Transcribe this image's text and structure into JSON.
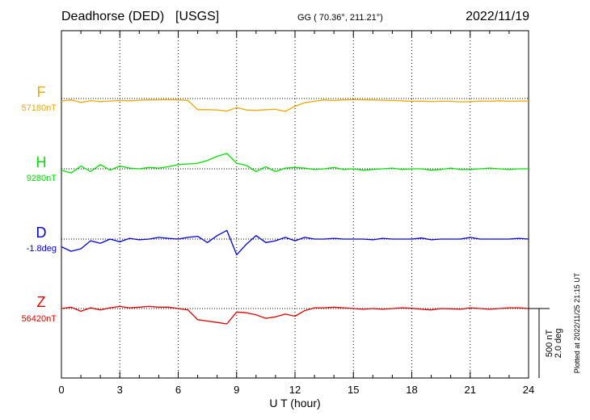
{
  "header": {
    "station": "Deadhorse (DED)",
    "source": "[USGS]",
    "coords": "GG ( 70.36°, 211.21°)",
    "date": "2022/11/19"
  },
  "footer": {
    "plotted": "Plotted at 2022/11/25 21:15 UT"
  },
  "colors": {
    "F": "#f0a800",
    "H": "#00e000",
    "D": "#0000dd",
    "Z": "#dd0000",
    "frame": "#000000"
  },
  "chart_data": {
    "type": "line",
    "title": "Deadhorse (DED)  [USGS]",
    "xlabel": "U T (hour)",
    "xlim": [
      0,
      24
    ],
    "xticks": [
      "0",
      "3",
      "6",
      "9",
      "12",
      "15",
      "18",
      "21",
      "24"
    ],
    "grid": "vertical dotted every 3 h",
    "scale": {
      "nT": "500 nT",
      "deg": "2.0 deg"
    },
    "series": [
      {
        "name": "F",
        "baseline": "57180nT",
        "x": [
          0,
          0.5,
          1,
          1.5,
          2,
          2.5,
          3,
          3.5,
          4,
          4.5,
          5,
          5.5,
          6,
          6.5,
          7,
          7.5,
          8,
          8.5,
          9,
          9.5,
          10,
          10.5,
          11,
          11.5,
          12,
          12.5,
          13,
          13.5,
          14,
          14.5,
          15,
          15.5,
          16,
          16.5,
          17,
          17.5,
          18,
          18.5,
          19,
          19.5,
          20,
          20.5,
          21,
          21.5,
          22,
          22.5,
          23,
          23.5,
          24
        ],
        "values": [
          18,
          10,
          28,
          15,
          22,
          18,
          14,
          16,
          12,
          10,
          9,
          8,
          10,
          14,
          80,
          80,
          82,
          90,
          65,
          82,
          85,
          80,
          78,
          92,
          55,
          30,
          20,
          10,
          14,
          10,
          8,
          9,
          10,
          12,
          14,
          16,
          20,
          19,
          21,
          20,
          20,
          24,
          22,
          18,
          20,
          16,
          20,
          18,
          18
        ]
      },
      {
        "name": "H",
        "baseline": "9280nT",
        "x": [
          0,
          0.5,
          1,
          1.5,
          2,
          2.5,
          3,
          3.5,
          4,
          4.5,
          5,
          5.5,
          6,
          6.5,
          7,
          7.5,
          8,
          8.5,
          9,
          9.5,
          10,
          10.5,
          11,
          11.5,
          12,
          12.5,
          13,
          13.5,
          14,
          14.5,
          15,
          15.5,
          16,
          16.5,
          17,
          17.5,
          18,
          18.5,
          19,
          19.5,
          20,
          20.5,
          21,
          21.5,
          22,
          22.5,
          23,
          23.5,
          24
        ],
        "values": [
          10,
          30,
          -20,
          20,
          -30,
          10,
          -20,
          -5,
          0,
          -10,
          -5,
          -15,
          -30,
          -35,
          -40,
          -60,
          -90,
          -110,
          -40,
          -25,
          20,
          -15,
          20,
          -5,
          -10,
          -5,
          5,
          0,
          -10,
          5,
          0,
          10,
          5,
          0,
          -5,
          5,
          0,
          0,
          10,
          5,
          -5,
          5,
          5,
          0,
          -5,
          0,
          5,
          0,
          0
        ]
      },
      {
        "name": "D",
        "baseline": "-1.8deg",
        "x": [
          0,
          0.5,
          1,
          1.5,
          2,
          2.5,
          3,
          3.5,
          4,
          4.5,
          5,
          5.5,
          6,
          6.5,
          7,
          7.5,
          8,
          8.5,
          9,
          9.5,
          10,
          10.5,
          11,
          11.5,
          12,
          12.5,
          13,
          13.5,
          14,
          14.5,
          15,
          15.5,
          16,
          16.5,
          17,
          17.5,
          18,
          18.5,
          19,
          19.5,
          20,
          20.5,
          21,
          21.5,
          22,
          22.5,
          23,
          23.5,
          24
        ],
        "values": [
          0.22,
          0.35,
          0.28,
          0.05,
          0.12,
          0.0,
          0.08,
          -0.02,
          0.02,
          0.0,
          -0.05,
          -0.02,
          0.0,
          -0.05,
          -0.08,
          0.1,
          -0.1,
          -0.25,
          0.45,
          0.15,
          -0.1,
          0.1,
          0.05,
          -0.05,
          0.05,
          -0.05,
          0.0,
          0.0,
          -0.02,
          0.0,
          0.0,
          0.0,
          0.02,
          -0.02,
          0.0,
          0.0,
          0.0,
          -0.03,
          0.02,
          0.0,
          0.0,
          0.0,
          -0.05,
          0.0,
          0.0,
          0.0,
          0.0,
          -0.02,
          0.0
        ]
      },
      {
        "name": "Z",
        "baseline": "56420nT",
        "x": [
          0,
          0.5,
          1,
          1.5,
          2,
          2.5,
          3,
          3.5,
          4,
          4.5,
          5,
          5.5,
          6,
          6.5,
          7,
          7.5,
          8,
          8.5,
          9,
          9.5,
          10,
          10.5,
          11,
          11.5,
          12,
          12.5,
          13,
          13.5,
          14,
          14.5,
          15,
          15.5,
          16,
          16.5,
          17,
          17.5,
          18,
          18.5,
          19,
          19.5,
          20,
          20.5,
          21,
          21.5,
          22,
          22.5,
          23,
          23.5,
          24
        ],
        "values": [
          0,
          -10,
          20,
          -5,
          10,
          -5,
          -15,
          -5,
          -10,
          -15,
          -10,
          -10,
          0,
          10,
          80,
          90,
          100,
          110,
          25,
          30,
          45,
          70,
          60,
          40,
          55,
          15,
          -5,
          -5,
          -10,
          -5,
          0,
          5,
          0,
          5,
          0,
          -5,
          -2,
          5,
          10,
          0,
          2,
          5,
          -5,
          0,
          5,
          0,
          -5,
          -5,
          0
        ]
      }
    ]
  }
}
